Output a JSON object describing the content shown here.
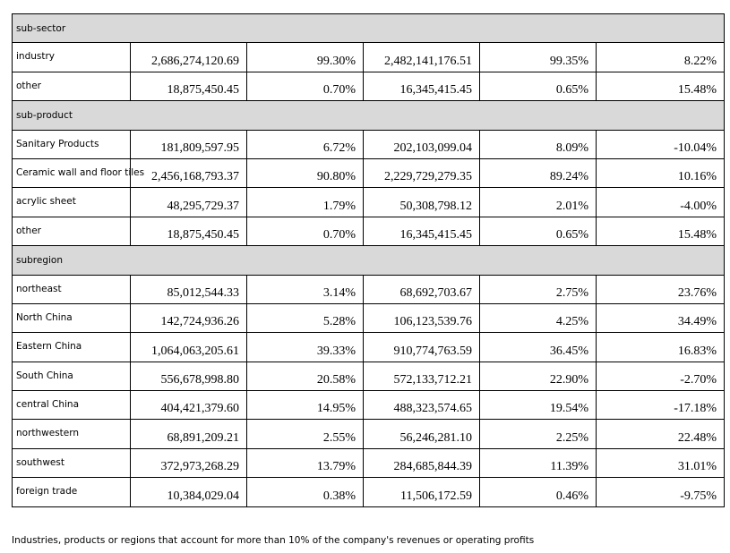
{
  "sections": [
    {
      "title": "sub-sector",
      "rows": [
        {
          "label": "industry",
          "values": [
            "2,686,274,120.69",
            "99.30%",
            "2,482,141,176.51",
            "99.35%",
            "8.22%"
          ]
        },
        {
          "label": "other",
          "values": [
            "18,875,450.45",
            "0.70%",
            "16,345,415.45",
            "0.65%",
            "15.48%"
          ]
        }
      ]
    },
    {
      "title": "sub-product",
      "rows": [
        {
          "label": "Sanitary Products",
          "values": [
            "181,809,597.95",
            "6.72%",
            "202,103,099.04",
            "8.09%",
            "-10.04%"
          ]
        },
        {
          "label": "Ceramic wall and floor tiles",
          "values": [
            "2,456,168,793.37",
            "90.80%",
            "2,229,729,279.35",
            "89.24%",
            "10.16%"
          ]
        },
        {
          "label": "acrylic sheet",
          "values": [
            "48,295,729.37",
            "1.79%",
            "50,308,798.12",
            "2.01%",
            "-4.00%"
          ]
        },
        {
          "label": "other",
          "values": [
            "18,875,450.45",
            "0.70%",
            "16,345,415.45",
            "0.65%",
            "15.48%"
          ]
        }
      ]
    },
    {
      "title": "subregion",
      "rows": [
        {
          "label": "northeast",
          "values": [
            "85,012,544.33",
            "3.14%",
            "68,692,703.67",
            "2.75%",
            "23.76%"
          ]
        },
        {
          "label": "North China",
          "values": [
            "142,724,936.26",
            "5.28%",
            "106,123,539.76",
            "4.25%",
            "34.49%"
          ]
        },
        {
          "label": "Eastern China",
          "values": [
            "1,064,063,205.61",
            "39.33%",
            "910,774,763.59",
            "36.45%",
            "16.83%"
          ]
        },
        {
          "label": "South China",
          "values": [
            "556,678,998.80",
            "20.58%",
            "572,133,712.21",
            "22.90%",
            "-2.70%"
          ]
        },
        {
          "label": "central China",
          "values": [
            "404,421,379.60",
            "14.95%",
            "488,323,574.65",
            "19.54%",
            "-17.18%"
          ]
        },
        {
          "label": "northwestern",
          "values": [
            "68,891,209.21",
            "2.55%",
            "56,246,281.10",
            "2.25%",
            "22.48%"
          ]
        },
        {
          "label": "southwest",
          "values": [
            "372,973,268.29",
            "13.79%",
            "284,685,844.39",
            "11.39%",
            "31.01%"
          ]
        },
        {
          "label": "foreign trade",
          "values": [
            "10,384,029.04",
            "0.38%",
            "11,506,172.59",
            "0.46%",
            "-9.75%"
          ]
        }
      ]
    }
  ],
  "footnote": "Industries, products or regions that account for more than 10% of the company's revenues or operating profits"
}
